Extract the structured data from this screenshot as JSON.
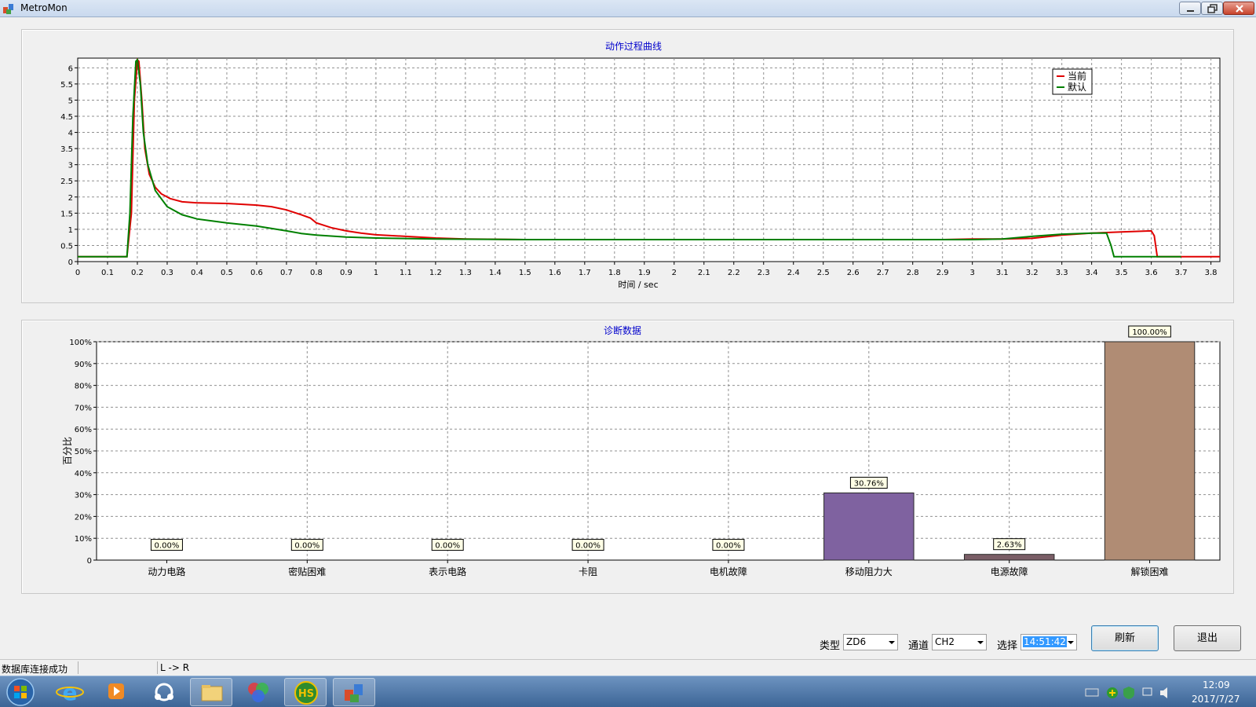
{
  "window": {
    "title": "MetroMon"
  },
  "curve_chart": {
    "title": "动作过程曲线",
    "xlabel": "时间 / sec",
    "x_ticks": [
      "0",
      "0.1",
      "0.2",
      "0.3",
      "0.4",
      "0.5",
      "0.6",
      "0.7",
      "0.8",
      "0.9",
      "1",
      "1.1",
      "1.2",
      "1.3",
      "1.4",
      "1.5",
      "1.6",
      "1.7",
      "1.8",
      "1.9",
      "2",
      "2.1",
      "2.2",
      "2.3",
      "2.4",
      "2.5",
      "2.6",
      "2.7",
      "2.8",
      "2.9",
      "3",
      "3.1",
      "3.2",
      "3.3",
      "3.4",
      "3.5",
      "3.6",
      "3.7",
      "3.8"
    ],
    "y_ticks": [
      "0",
      "0.5",
      "1",
      "1.5",
      "2",
      "2.5",
      "3",
      "3.5",
      "4",
      "4.5",
      "5",
      "5.5",
      "6"
    ],
    "legend": [
      "当前",
      "默认"
    ]
  },
  "diag_chart": {
    "title": "诊断数据",
    "ylabel": "百分比",
    "y_ticks": [
      "0",
      "10%",
      "20%",
      "30%",
      "40%",
      "50%",
      "60%",
      "70%",
      "80%",
      "90%",
      "100%"
    ],
    "categories": [
      "动力电路",
      "密贴困难",
      "表示电路",
      "卡阻",
      "电机故障",
      "移动阻力大",
      "电源故障",
      "解锁困难"
    ],
    "value_labels": [
      "0.00%",
      "0.00%",
      "0.00%",
      "0.00%",
      "0.00%",
      "30.76%",
      "2.63%",
      "100.00%"
    ]
  },
  "chart_data": [
    {
      "type": "line",
      "title": "动作过程曲线",
      "xlabel": "时间 / sec",
      "ylabel": "",
      "xlim": [
        0,
        3.83
      ],
      "ylim": [
        0,
        6.3
      ],
      "grid": true,
      "legend_position": "top-right",
      "series": [
        {
          "name": "当前",
          "color": "#e00000",
          "points": [
            [
              0,
              0.15
            ],
            [
              0.165,
              0.15
            ],
            [
              0.18,
              1.5
            ],
            [
              0.19,
              5.0
            ],
            [
              0.2,
              6.25
            ],
            [
              0.205,
              6.2
            ],
            [
              0.215,
              5.0
            ],
            [
              0.225,
              3.5
            ],
            [
              0.24,
              2.7
            ],
            [
              0.26,
              2.3
            ],
            [
              0.28,
              2.1
            ],
            [
              0.31,
              1.95
            ],
            [
              0.35,
              1.85
            ],
            [
              0.4,
              1.82
            ],
            [
              0.5,
              1.8
            ],
            [
              0.6,
              1.75
            ],
            [
              0.65,
              1.7
            ],
            [
              0.7,
              1.6
            ],
            [
              0.75,
              1.45
            ],
            [
              0.78,
              1.35
            ],
            [
              0.8,
              1.2
            ],
            [
              0.85,
              1.05
            ],
            [
              0.9,
              0.95
            ],
            [
              0.95,
              0.88
            ],
            [
              1.0,
              0.83
            ],
            [
              1.1,
              0.78
            ],
            [
              1.2,
              0.73
            ],
            [
              1.3,
              0.7
            ],
            [
              1.5,
              0.68
            ],
            [
              2.0,
              0.68
            ],
            [
              2.5,
              0.68
            ],
            [
              2.9,
              0.68
            ],
            [
              3.0,
              0.7
            ],
            [
              3.1,
              0.7
            ],
            [
              3.2,
              0.72
            ],
            [
              3.3,
              0.82
            ],
            [
              3.4,
              0.88
            ],
            [
              3.5,
              0.92
            ],
            [
              3.6,
              0.95
            ],
            [
              3.61,
              0.8
            ],
            [
              3.62,
              0.15
            ],
            [
              3.83,
              0.15
            ]
          ]
        },
        {
          "name": "默认",
          "color": "#008000",
          "points": [
            [
              0,
              0.15
            ],
            [
              0.165,
              0.15
            ],
            [
              0.175,
              1.5
            ],
            [
              0.185,
              4.5
            ],
            [
              0.195,
              6.2
            ],
            [
              0.2,
              6.25
            ],
            [
              0.21,
              5.5
            ],
            [
              0.22,
              4.0
            ],
            [
              0.235,
              3.0
            ],
            [
              0.26,
              2.2
            ],
            [
              0.3,
              1.7
            ],
            [
              0.35,
              1.45
            ],
            [
              0.4,
              1.32
            ],
            [
              0.5,
              1.2
            ],
            [
              0.6,
              1.1
            ],
            [
              0.7,
              0.95
            ],
            [
              0.75,
              0.87
            ],
            [
              0.8,
              0.82
            ],
            [
              0.9,
              0.76
            ],
            [
              1.0,
              0.73
            ],
            [
              1.2,
              0.7
            ],
            [
              1.5,
              0.68
            ],
            [
              2.0,
              0.68
            ],
            [
              2.5,
              0.68
            ],
            [
              3.0,
              0.68
            ],
            [
              3.1,
              0.7
            ],
            [
              3.2,
              0.78
            ],
            [
              3.3,
              0.85
            ],
            [
              3.4,
              0.88
            ],
            [
              3.45,
              0.88
            ],
            [
              3.465,
              0.5
            ],
            [
              3.475,
              0.15
            ],
            [
              3.7,
              0.15
            ]
          ]
        }
      ]
    },
    {
      "type": "bar",
      "title": "诊断数据",
      "xlabel": "",
      "ylabel": "百分比",
      "ylim": [
        0,
        100
      ],
      "grid": true,
      "categories": [
        "动力电路",
        "密贴困难",
        "表示电路",
        "卡阻",
        "电机故障",
        "移动阻力大",
        "电源故障",
        "解锁困难"
      ],
      "values": [
        0,
        0,
        0,
        0,
        0,
        30.76,
        2.63,
        100.0
      ],
      "colors": [
        "#7f62a0",
        "#7f62a0",
        "#7f62a0",
        "#7f62a0",
        "#7f62a0",
        "#7f62a0",
        "#7a5e66",
        "#b08c74"
      ]
    }
  ],
  "controls": {
    "type_label": "类型",
    "type_value": "ZD6",
    "channel_label": "通道",
    "channel_value": "CH2",
    "select_label": "选择",
    "select_value": "14:51:42",
    "refresh_label": "刷新",
    "exit_label": "退出"
  },
  "status": {
    "db": "数据库连接成功",
    "direction": "L -> R"
  },
  "taskbar": {
    "apps": [
      "start-orb",
      "ie-icon",
      "media-player-icon",
      "network-app-icon",
      "file-explorer-icon",
      "color-app-icon",
      "hs-app-icon",
      "metromon-app-icon"
    ],
    "time": "12:09",
    "date": "2017/7/27"
  }
}
